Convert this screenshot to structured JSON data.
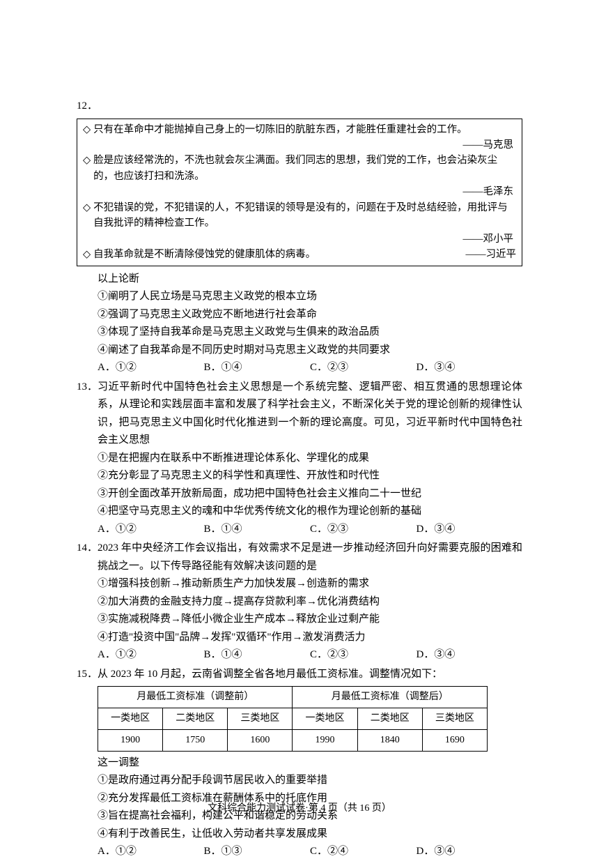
{
  "q12": {
    "num": "12．",
    "quotes": [
      {
        "text": "只有在革命中才能抛掉自己身上的一切陈旧的肮脏东西，才能胜任重建社会的工作。",
        "author": "——马克思"
      },
      {
        "text": "脸是应该经常洗的，不洗也就会灰尘满面。我们同志的思想，我们党的工作，也会沾染灰尘的，也应该打扫和洗涤。",
        "author": "——毛泽东"
      },
      {
        "text": "不犯错误的党，不犯错误的人，不犯错误的领导是没有的，问题在于及时总结经验，用批评与自我批评的精神检查工作。",
        "author": "——邓小平"
      },
      {
        "text": "自我革命就是不断清除侵蚀党的健康肌体的病毒。",
        "author": "——习近平"
      }
    ],
    "lead": "以上论断",
    "s1": "①阐明了人民立场是马克思主义政党的根本立场",
    "s2": "②强调了马克思主义政党应不断地进行社会革命",
    "s3": "③体现了坚持自我革命是马克思主义政党与生俱来的政治品质",
    "s4": "④阐述了自我革命是不同历史时期对马克思主义政党的共同要求",
    "opts": {
      "a": "A．①②",
      "b": "B．①④",
      "c": "C．②③",
      "d": "D．③④"
    }
  },
  "q13": {
    "num": "13．",
    "body": "习近平新时代中国特色社会主义思想是一个系统完整、逻辑严密、相互贯通的思想理论体系，从理论和实践层面丰富和发展了科学社会主义，不断深化关于党的理论创新的规律性认识，把马克思主义中国化时代化推进到一个新的理论高度。可见，习近平新时代中国特色社会主义思想",
    "s1": "①是在把握内在联系中不断推进理论体系化、学理化的成果",
    "s2": "②充分彰显了马克思主义的科学性和真理性、开放性和时代性",
    "s3": "③开创全面改革开放新局面，成功把中国特色社会主义推向二十一世纪",
    "s4": "④把坚守马克思主义的魂和中华优秀传统文化的根作为理论创新的基础",
    "opts": {
      "a": "A．①②",
      "b": "B．①④",
      "c": "C．②③",
      "d": "D．③④"
    }
  },
  "q14": {
    "num": "14．",
    "body": "2023 年中央经济工作会议指出，有效需求不足是进一步推动经济回升向好需要克服的困难和挑战之一。以下传导路径能有效解决该问题的是",
    "s1": "①增强科技创新→推动新质生产力加快发展→创造新的需求",
    "s2": "②加大消费的金融支持力度→提高存贷款利率→优化消费结构",
    "s3": "③实施减税降费→降低小微企业生产成本→释放企业过剩产能",
    "s4": "④打造\"投资中国\"品牌→发挥\"双循环\"作用→激发消费活力",
    "opts": {
      "a": "A．①②",
      "b": "B．①④",
      "c": "C．②③",
      "d": "D．③④"
    }
  },
  "q15": {
    "num": "15．",
    "body": "从 2023 年 10 月起，云南省调整全省各地月最低工资标准。调整情况如下：",
    "th_before": "月最低工资标准（调整前）",
    "th_after": "月最低工资标准（调整后）",
    "h1": "一类地区",
    "h2": "二类地区",
    "h3": "三类地区",
    "h4": "一类地区",
    "h5": "二类地区",
    "h6": "三类地区",
    "v1": "1900",
    "v2": "1750",
    "v3": "1600",
    "v4": "1990",
    "v5": "1840",
    "v6": "1690",
    "lead": "这一调整",
    "s1": "①是政府通过再分配手段调节居民收入的重要举措",
    "s2": "②充分发挥最低工资标准在薪酬体系中的托底作用",
    "s3": "③旨在提高社会福利，构建公平和谐稳定的劳动关系",
    "s4": "④有利于改善民生，让低收入劳动者共享发展成果",
    "opts": {
      "a": "A．①②",
      "b": "B．①③",
      "c": "C．②④",
      "d": "D．③④"
    }
  },
  "footer": "文科综合能力测试试卷·第 4 页（共 16 页）"
}
